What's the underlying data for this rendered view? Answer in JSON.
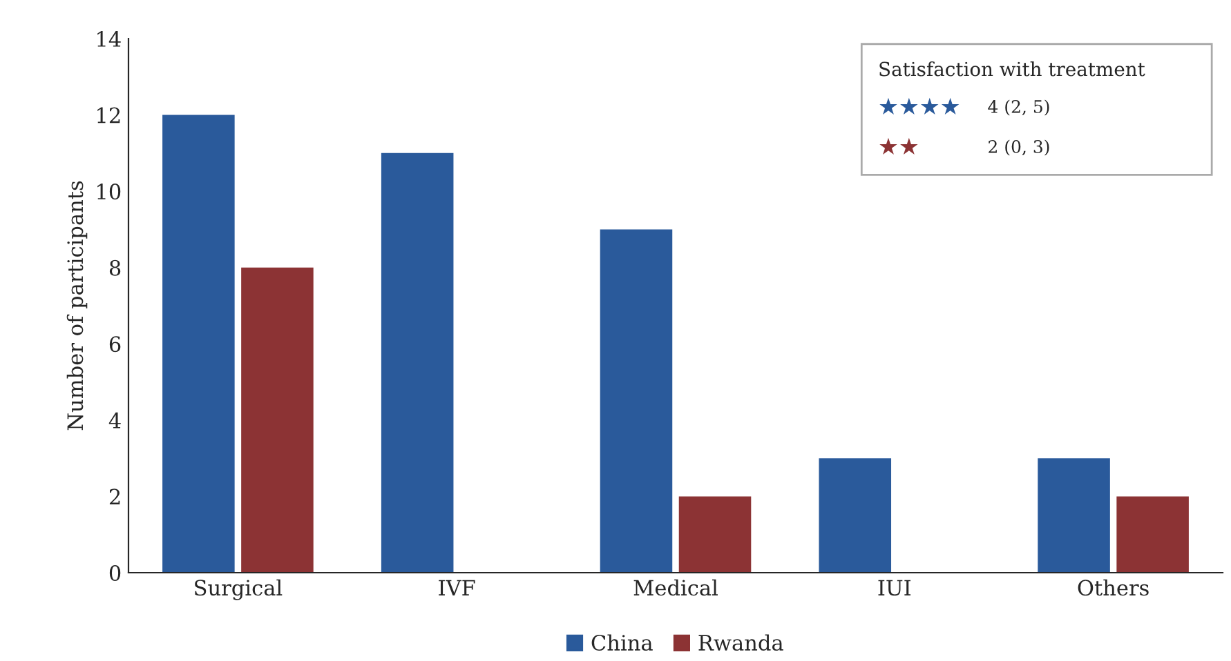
{
  "chart_data": {
    "type": "bar",
    "ylabel": "Number of participants",
    "categories": [
      "Surgical",
      "IVF",
      "Medical",
      "IUI",
      "Others"
    ],
    "series": [
      {
        "name": "China",
        "color": "#2a5a9b",
        "values": [
          12,
          11,
          9,
          3,
          3
        ]
      },
      {
        "name": "Rwanda",
        "color": "#8c3334",
        "values": [
          8,
          null,
          2,
          null,
          2
        ]
      }
    ],
    "ylim": [
      0,
      14
    ],
    "yticks": [
      0,
      2,
      4,
      6,
      8,
      10,
      12,
      14
    ],
    "grid": false,
    "legend": "bottom",
    "annotations": [
      "Satisfaction with treatment",
      "★★★★",
      "4 (2, 5)",
      "★★",
      "2 (0, 3)"
    ]
  }
}
